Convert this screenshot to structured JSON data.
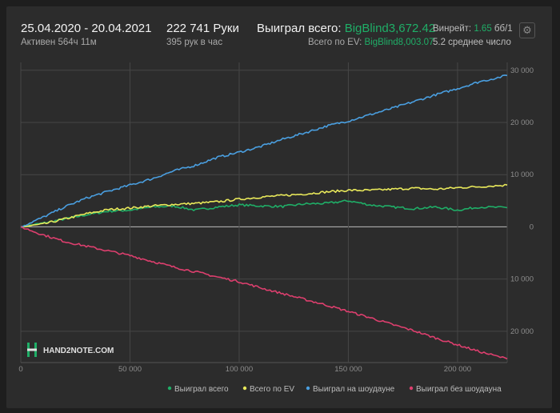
{
  "header": {
    "date_range": "25.04.2020 - 20.04.2021",
    "active_time": "Активен 564ч 11м",
    "hands_total": "222 741 Руки",
    "hands_per_hour": "395 рук в час",
    "won_total_label": "Выиграл всего:",
    "won_total_value": "BigBlind3,672.42",
    "ev_total_label": "Всего по EV:",
    "ev_total_value": "BigBlind8,003.07",
    "winrate_label": "Винрейт:",
    "winrate_value": "1.65",
    "winrate_unit": "бб/1",
    "avg_number": "5.2 среднее число"
  },
  "logo": {
    "text": "HAND2NOTE.COM"
  },
  "colors": {
    "won_total": "#1fae67",
    "ev_total": "#e8e85a",
    "showdown": "#4a9fe0",
    "no_showdown": "#dd3f6e"
  },
  "chart_data": {
    "type": "line",
    "x_ticks": [
      "0",
      "50 000",
      "100 000",
      "150 000",
      "200 000"
    ],
    "y_ticks": [
      {
        "value": 30000,
        "label": "30 000"
      },
      {
        "value": 20000,
        "label": "20 000"
      },
      {
        "value": 10000,
        "label": "10 000"
      },
      {
        "value": 0,
        "label": "0"
      },
      {
        "value": -10000,
        "label": "10 000"
      },
      {
        "value": -20000,
        "label": "20 000"
      }
    ],
    "xlim": [
      0,
      222741
    ],
    "ylim": [
      -26000,
      31500
    ],
    "grid": true,
    "legend_position": "bottom-right",
    "series": [
      {
        "name": "Выиграл всего",
        "color": "#1fae67",
        "x": [
          0,
          10000,
          20000,
          30000,
          40000,
          50000,
          60000,
          70000,
          80000,
          90000,
          100000,
          110000,
          120000,
          130000,
          140000,
          150000,
          160000,
          170000,
          180000,
          190000,
          200000,
          210000,
          222741
        ],
        "y": [
          0,
          700,
          1500,
          2300,
          3000,
          3200,
          3800,
          4000,
          3200,
          3800,
          4200,
          4000,
          3900,
          4400,
          4500,
          5000,
          4200,
          3800,
          3500,
          3800,
          3200,
          3800,
          3672
        ]
      },
      {
        "name": "Всего по EV",
        "color": "#e8e85a",
        "x": [
          0,
          10000,
          20000,
          30000,
          40000,
          50000,
          60000,
          70000,
          80000,
          90000,
          100000,
          110000,
          120000,
          130000,
          140000,
          150000,
          160000,
          170000,
          180000,
          190000,
          200000,
          210000,
          222741
        ],
        "y": [
          0,
          500,
          1500,
          2500,
          3300,
          3600,
          4000,
          4300,
          4500,
          4800,
          5300,
          5700,
          6000,
          6300,
          6700,
          7000,
          7000,
          7200,
          7400,
          7200,
          7500,
          7700,
          8003
        ]
      },
      {
        "name": "Выиграл на шоудауне",
        "color": "#4a9fe0",
        "x": [
          0,
          10000,
          20000,
          30000,
          40000,
          50000,
          60000,
          70000,
          80000,
          90000,
          100000,
          110000,
          120000,
          130000,
          140000,
          150000,
          160000,
          170000,
          180000,
          190000,
          200000,
          210000,
          222741
        ],
        "y": [
          0,
          1800,
          3800,
          5500,
          6800,
          8000,
          9200,
          10700,
          11800,
          13300,
          14300,
          15400,
          16800,
          18000,
          19300,
          20300,
          21500,
          22700,
          24000,
          25300,
          26500,
          27800,
          29000
        ]
      },
      {
        "name": "Выиграл без шоудауна",
        "color": "#dd3f6e",
        "x": [
          0,
          10000,
          20000,
          30000,
          40000,
          50000,
          60000,
          70000,
          80000,
          90000,
          100000,
          110000,
          120000,
          130000,
          140000,
          150000,
          160000,
          170000,
          180000,
          190000,
          200000,
          210000,
          222741
        ],
        "y": [
          0,
          -1500,
          -2800,
          -3700,
          -4600,
          -5500,
          -6600,
          -7700,
          -8600,
          -9600,
          -10500,
          -11700,
          -12800,
          -13900,
          -15000,
          -16200,
          -17400,
          -18700,
          -19900,
          -21300,
          -22600,
          -23900,
          -25300
        ]
      }
    ]
  }
}
